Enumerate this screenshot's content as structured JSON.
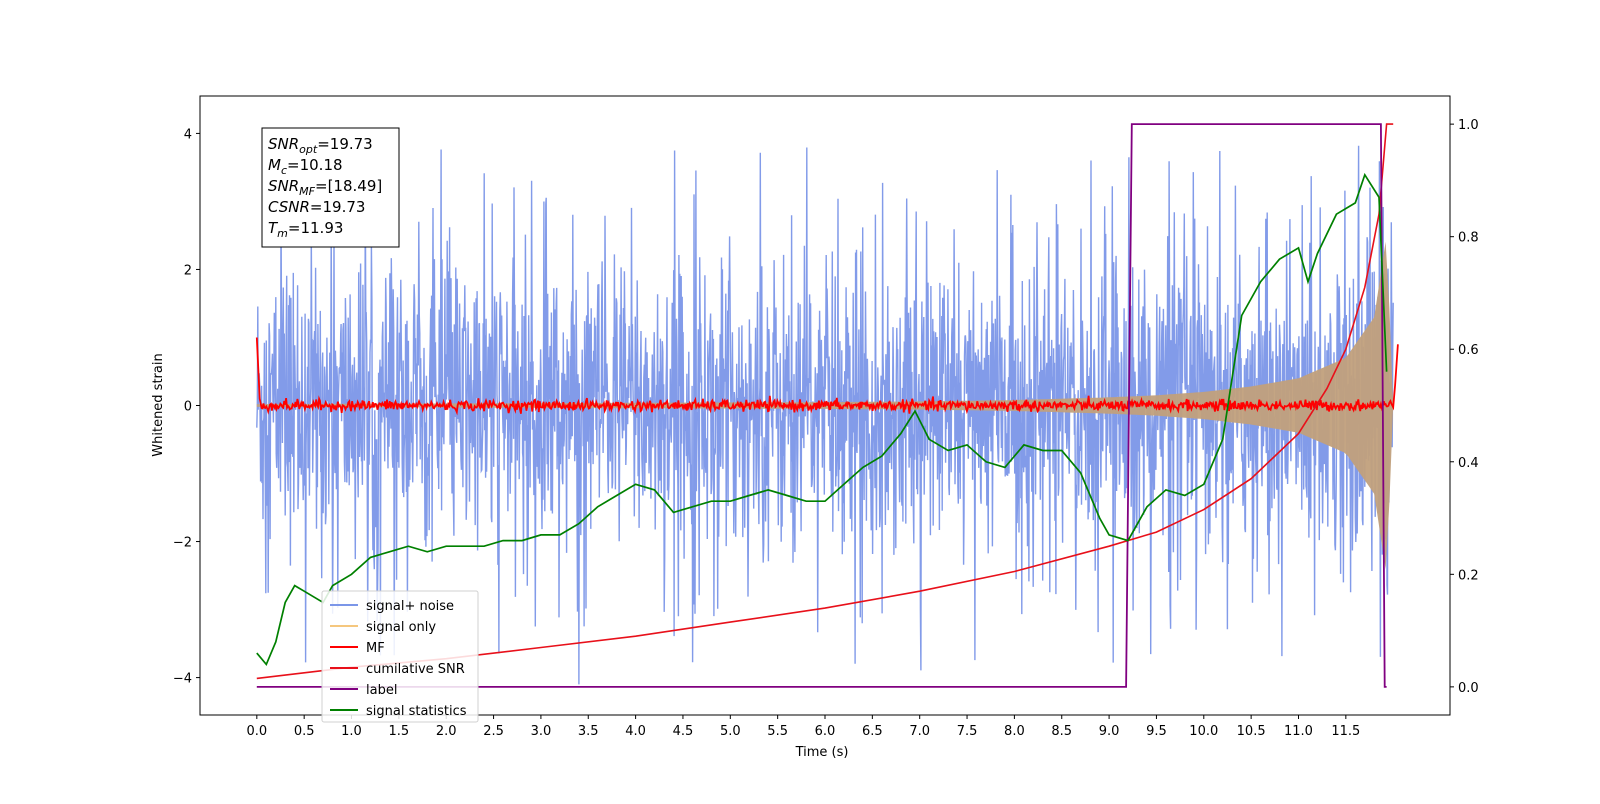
{
  "chart_data": {
    "type": "line",
    "title": "",
    "xlabel": "Time (s)",
    "ylabel": "Whitened strain",
    "y2label": "",
    "xlim": [
      -0.6,
      12.6
    ],
    "ylim": [
      -4.55,
      4.55
    ],
    "y2lim": [
      -0.05,
      1.05
    ],
    "x_ticks": [
      "0.0",
      "0.5",
      "1.0",
      "1.5",
      "2.0",
      "2.5",
      "3.0",
      "3.5",
      "4.0",
      "4.5",
      "5.0",
      "5.5",
      "6.0",
      "6.5",
      "7.0",
      "7.5",
      "8.0",
      "8.5",
      "9.0",
      "9.5",
      "10.0",
      "10.5",
      "11.0",
      "11.5"
    ],
    "y_ticks": [
      "4",
      "2",
      "0",
      "−2",
      "−4"
    ],
    "y2_ticks": [
      "1.0",
      "0.8",
      "0.6",
      "0.4",
      "0.2",
      "0.0"
    ],
    "grid": false,
    "legend_position": "lower-left",
    "annotation": {
      "snr_opt": {
        "base": "SNR",
        "sub": "opt",
        "value": "=19.73"
      },
      "mc": {
        "base": "M",
        "sub": "c",
        "value": "=10.18"
      },
      "snr_mf": {
        "base": "SNR",
        "sub": "MF",
        "value": "=[18.49]"
      },
      "csnr": {
        "base": "CSNR",
        "sub": "",
        "value": "=19.73"
      },
      "tm": {
        "base": "T",
        "sub": "m",
        "value": "=11.93"
      }
    },
    "series": [
      {
        "name": "signal+ noise",
        "color": "#7b96e8",
        "axis": "left",
        "description_type": "noise",
        "envelope_x": [
          0,
          12
        ],
        "noise_upper": 2.5,
        "noise_lower": -2.5,
        "peak": 4.0
      },
      {
        "name": "signal only",
        "color": "#f5c77e",
        "axis": "left",
        "x": [
          0,
          2,
          4,
          6,
          7,
          8,
          9,
          9.5,
          10,
          10.5,
          11,
          11.5,
          11.8,
          11.93,
          12.0
        ],
        "amplitude": [
          0.02,
          0.03,
          0.04,
          0.05,
          0.06,
          0.08,
          0.12,
          0.15,
          0.2,
          0.28,
          0.4,
          0.7,
          1.3,
          2.5,
          0
        ]
      },
      {
        "name": "MF",
        "color": "#ff0000",
        "axis": "left",
        "x": [
          0,
          0.03,
          0.05,
          12.0,
          12.02,
          12.05
        ],
        "y": [
          1.0,
          0.1,
          0.0,
          0.0,
          0.3,
          0.9
        ],
        "noise": 0.04
      },
      {
        "name": "cumilative SNR",
        "color": "#e8101a",
        "axis": "right",
        "x": [
          0.0,
          1.0,
          2.0,
          3.0,
          4.0,
          5.0,
          6.0,
          7.0,
          8.0,
          9.0,
          9.5,
          10.0,
          10.5,
          11.0,
          11.3,
          11.5,
          11.7,
          11.85,
          11.93,
          12.0
        ],
        "y": [
          0.015,
          0.035,
          0.05,
          0.07,
          0.09,
          0.115,
          0.14,
          0.17,
          0.205,
          0.25,
          0.275,
          0.315,
          0.37,
          0.45,
          0.53,
          0.6,
          0.71,
          0.84,
          1.0,
          1.0
        ]
      },
      {
        "name": "label",
        "color": "#800080",
        "axis": "right",
        "x": [
          0.0,
          9.18,
          9.24,
          11.87,
          11.91,
          11.93
        ],
        "y": [
          0.0,
          0.0,
          1.0,
          1.0,
          0.0,
          0.0
        ]
      },
      {
        "name": "signal statistics",
        "color": "#008000",
        "axis": "right",
        "x": [
          0.0,
          0.1,
          0.2,
          0.3,
          0.4,
          0.5,
          0.6,
          0.7,
          0.8,
          1.0,
          1.2,
          1.4,
          1.6,
          1.8,
          2.0,
          2.2,
          2.4,
          2.6,
          2.8,
          3.0,
          3.2,
          3.4,
          3.6,
          3.8,
          4.0,
          4.2,
          4.4,
          4.6,
          4.8,
          5.0,
          5.2,
          5.4,
          5.6,
          5.8,
          6.0,
          6.2,
          6.4,
          6.6,
          6.8,
          6.95,
          7.1,
          7.3,
          7.5,
          7.7,
          7.9,
          8.1,
          8.3,
          8.5,
          8.7,
          8.9,
          9.0,
          9.2,
          9.4,
          9.6,
          9.8,
          10.0,
          10.2,
          10.4,
          10.6,
          10.8,
          11.0,
          11.1,
          11.2,
          11.4,
          11.6,
          11.7,
          11.85,
          11.93
        ],
        "y": [
          0.06,
          0.04,
          0.08,
          0.15,
          0.18,
          0.17,
          0.16,
          0.15,
          0.18,
          0.2,
          0.23,
          0.24,
          0.25,
          0.24,
          0.25,
          0.25,
          0.25,
          0.26,
          0.26,
          0.27,
          0.27,
          0.29,
          0.32,
          0.34,
          0.36,
          0.35,
          0.31,
          0.32,
          0.33,
          0.33,
          0.34,
          0.35,
          0.34,
          0.33,
          0.33,
          0.36,
          0.39,
          0.41,
          0.45,
          0.49,
          0.44,
          0.42,
          0.43,
          0.4,
          0.39,
          0.43,
          0.42,
          0.42,
          0.38,
          0.3,
          0.27,
          0.26,
          0.32,
          0.35,
          0.34,
          0.36,
          0.44,
          0.66,
          0.72,
          0.76,
          0.78,
          0.72,
          0.77,
          0.84,
          0.86,
          0.91,
          0.87,
          0.56
        ]
      }
    ]
  }
}
